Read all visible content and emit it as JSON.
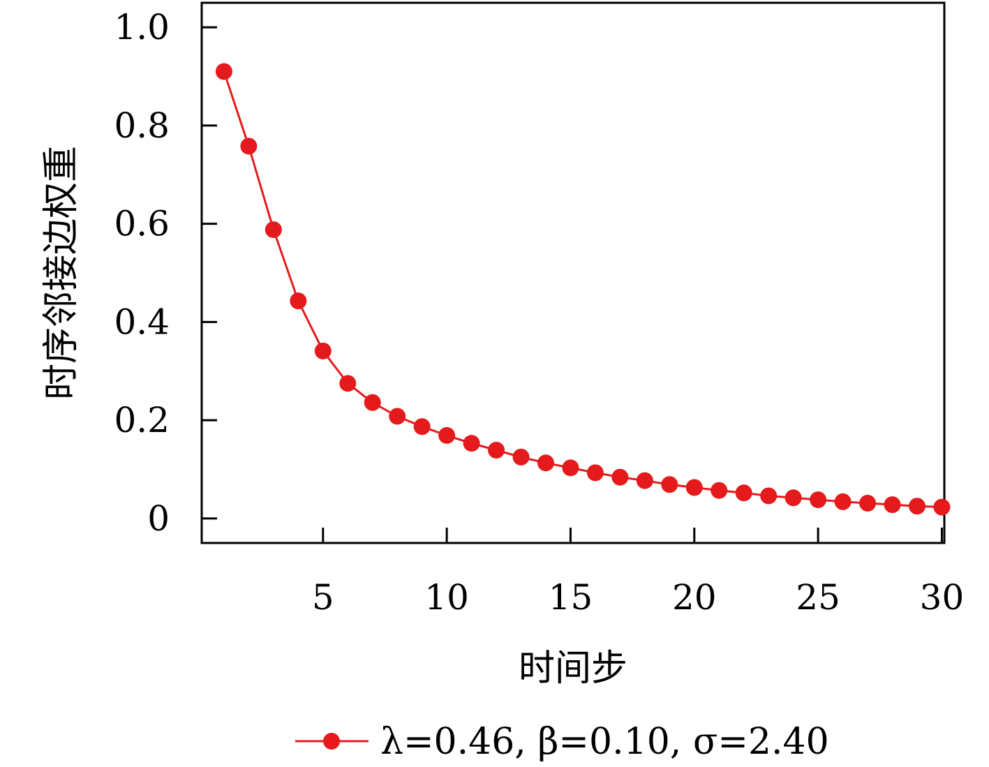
{
  "chart_data": {
    "type": "line",
    "title": "",
    "xlabel": "时间步",
    "ylabel": "时序邻接边权重",
    "xlim": [
      0.1,
      30.1
    ],
    "ylim": [
      -0.05,
      1.05
    ],
    "xticks": [
      5,
      10,
      15,
      20,
      25,
      30
    ],
    "yticks": [
      0,
      0.2,
      0.4,
      0.6,
      0.8,
      1.0
    ],
    "ytick_labels": [
      "0",
      "0.2",
      "0.4",
      "0.6",
      "0.8",
      "1.0"
    ],
    "xtick_labels": [
      "5",
      "10",
      "15",
      "20",
      "25",
      "30"
    ],
    "grid": false,
    "legend_position": "bottom-center",
    "series": [
      {
        "name": "λ=0.46, β=0.10, σ=2.40",
        "color": "#e41a1c",
        "marker": "circle",
        "x": [
          1,
          2,
          3,
          4,
          5,
          6,
          7,
          8,
          9,
          10,
          11,
          12,
          13,
          14,
          15,
          16,
          17,
          18,
          19,
          20,
          21,
          22,
          23,
          24,
          25,
          26,
          27,
          28,
          29,
          30
        ],
        "values": [
          0.91,
          0.758,
          0.588,
          0.443,
          0.341,
          0.275,
          0.236,
          0.208,
          0.187,
          0.169,
          0.153,
          0.139,
          0.125,
          0.113,
          0.103,
          0.093,
          0.084,
          0.077,
          0.069,
          0.063,
          0.057,
          0.052,
          0.046,
          0.042,
          0.038,
          0.034,
          0.031,
          0.028,
          0.025,
          0.023
        ]
      }
    ]
  }
}
